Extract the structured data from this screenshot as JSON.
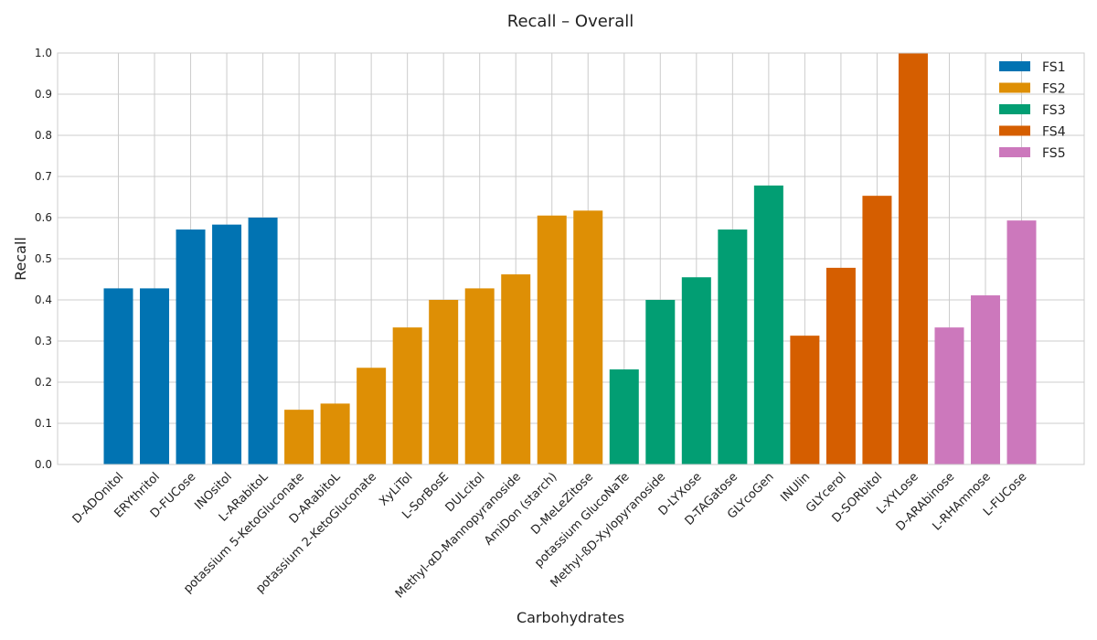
{
  "chart_data": {
    "type": "bar",
    "title": "Recall – Overall",
    "xlabel": "Carbohydrates",
    "ylabel": "Recall",
    "ylim": [
      0,
      1.0
    ],
    "yticks": [
      "0.0",
      "0.1",
      "0.2",
      "0.3",
      "0.4",
      "0.5",
      "0.6",
      "0.7",
      "0.8",
      "0.9",
      "1.0"
    ],
    "grid": true,
    "legend_position": "top-right",
    "categories": [
      "D-ADOnitol",
      "ERYthritol",
      "D-FUCose",
      "INOsitol",
      "L-ARabitoL",
      "potassium 5-KetoGluconate",
      "D-ARabitoL",
      "potassium 2-KetoGluconate",
      "XyLiTol",
      "L-SorBosE",
      "DULcitol",
      "Methyl-αD-Mannopyranoside",
      "AmiDon (starch)",
      "D-MeLeZitose",
      "potassium GlucoNaTe",
      "Methyl-ßD-Xylopyranoside",
      "D-LYXose",
      "D-TAGatose",
      "GLYcoGen",
      "INUlin",
      "GLYcerol",
      "D-SORbitol",
      "L-XYLose",
      "D-ARAbinose",
      "L-RHAmnose",
      "L-FUCose"
    ],
    "series": [
      {
        "name": "FS1",
        "color": "#0173b2",
        "values": [
          0.428,
          0.428,
          0.571,
          0.583,
          0.6,
          null,
          null,
          null,
          null,
          null,
          null,
          null,
          null,
          null,
          null,
          null,
          null,
          null,
          null,
          null,
          null,
          null,
          null,
          null,
          null,
          null
        ]
      },
      {
        "name": "FS2",
        "color": "#de8f05",
        "values": [
          null,
          null,
          null,
          null,
          null,
          0.133,
          0.148,
          0.235,
          0.333,
          0.4,
          0.428,
          0.462,
          0.605,
          0.617,
          null,
          null,
          null,
          null,
          null,
          null,
          null,
          null,
          null,
          null,
          null,
          null
        ]
      },
      {
        "name": "FS3",
        "color": "#029e73",
        "values": [
          null,
          null,
          null,
          null,
          null,
          null,
          null,
          null,
          null,
          null,
          null,
          null,
          null,
          null,
          0.231,
          0.4,
          0.455,
          0.571,
          0.678,
          null,
          null,
          null,
          null,
          null,
          null,
          null
        ]
      },
      {
        "name": "FS4",
        "color": "#d55e00",
        "values": [
          null,
          null,
          null,
          null,
          null,
          null,
          null,
          null,
          null,
          null,
          null,
          null,
          null,
          null,
          null,
          null,
          null,
          null,
          null,
          0.313,
          0.478,
          0.653,
          1.0,
          null,
          null,
          null
        ]
      },
      {
        "name": "FS5",
        "color": "#cc78bc",
        "values": [
          null,
          null,
          null,
          null,
          null,
          null,
          null,
          null,
          null,
          null,
          null,
          null,
          null,
          null,
          null,
          null,
          null,
          null,
          null,
          null,
          null,
          null,
          null,
          0.333,
          0.411,
          0.593
        ]
      }
    ]
  }
}
